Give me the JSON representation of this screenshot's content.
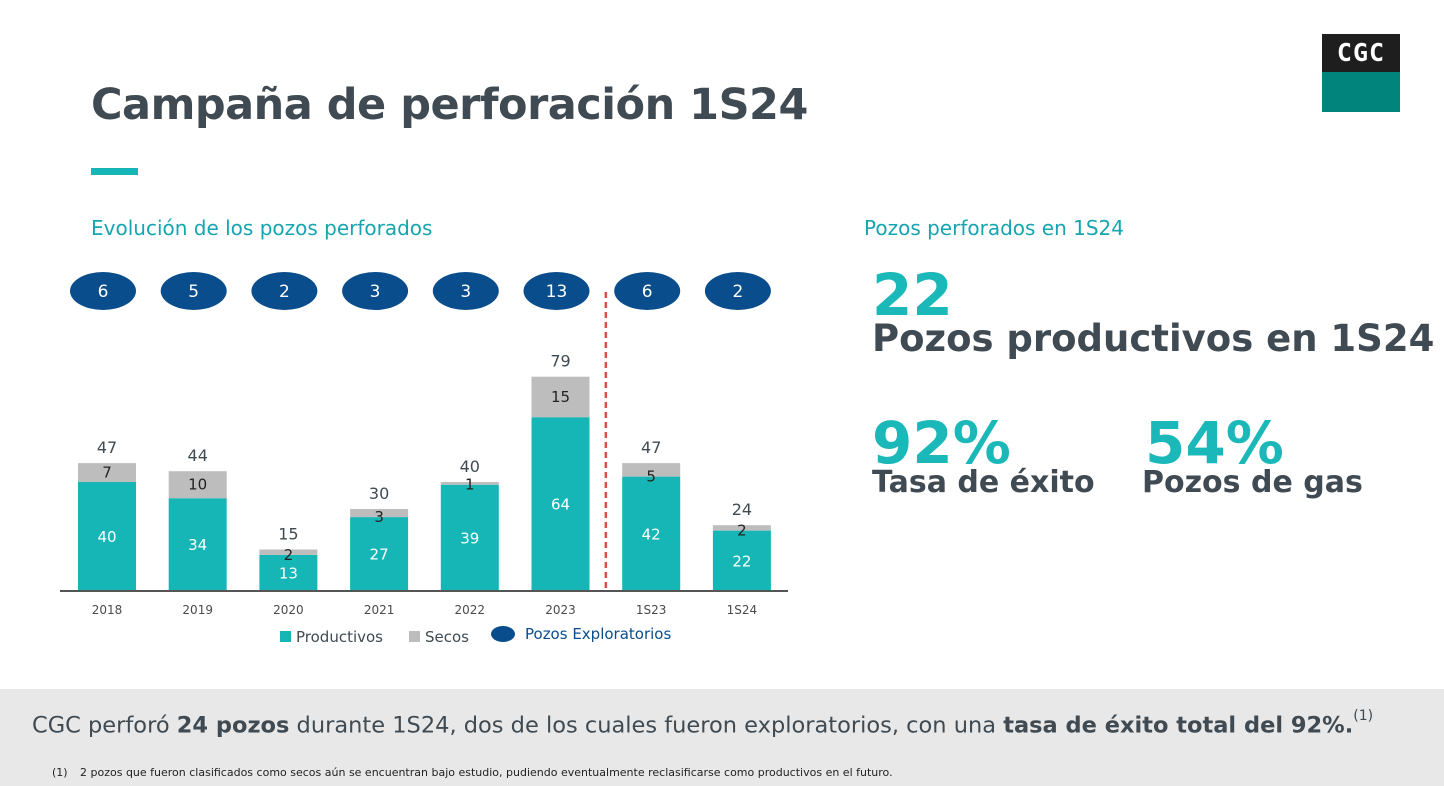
{
  "header": {
    "title": "Campaña de perforación 1S24",
    "logo_text": "CGC"
  },
  "colors": {
    "productivos": "#16b6b6",
    "secos": "#bdbdbd",
    "exploratorios": "#0a4d8c",
    "divider": "#e04a4a",
    "accent": "#16b6b6",
    "text": "#3f4a52"
  },
  "chart_section": {
    "title": "Evolución de los pozos perforados"
  },
  "chart_data": {
    "type": "bar",
    "stacked": true,
    "categories": [
      "2018",
      "2019",
      "2020",
      "2021",
      "2022",
      "2023",
      "1S23",
      "1S24"
    ],
    "series": [
      {
        "name": "Productivos",
        "values": [
          40,
          34,
          13,
          27,
          39,
          64,
          42,
          22
        ]
      },
      {
        "name": "Secos",
        "values": [
          7,
          10,
          2,
          3,
          1,
          15,
          5,
          2
        ]
      }
    ],
    "totals": [
      47,
      44,
      15,
      30,
      40,
      79,
      47,
      24
    ],
    "exploratorios": {
      "name": "Pozos Exploratorios",
      "values": [
        6,
        5,
        2,
        3,
        3,
        13,
        6,
        2
      ]
    },
    "divider_between": [
      "2023",
      "1S23"
    ],
    "legend": [
      "Productivos",
      "Secos",
      "Pozos Exploratorios"
    ],
    "legend_position": "bottom",
    "ylim": [
      0,
      90
    ],
    "grid": false
  },
  "kpis": {
    "title": "Pozos perforados en 1S24",
    "main_value": "22",
    "main_label": "Pozos productivos en 1S24",
    "success_value": "92%",
    "success_label": "Tasa de éxito",
    "gas_value": "54%",
    "gas_label": "Pozos de gas"
  },
  "summary": {
    "pre": "CGC perforó ",
    "bold1": "24 pozos",
    "mid": " durante 1S24, dos de los cuales fueron exploratorios, con una ",
    "bold2": "tasa de éxito total del 92%.",
    "sup": "(1)"
  },
  "footnote": {
    "mark": "(1)",
    "text": "2 pozos que fueron clasificados como secos aún se encuentran bajo estudio, pudiendo eventualmente reclasificarse como productivos en el futuro."
  }
}
